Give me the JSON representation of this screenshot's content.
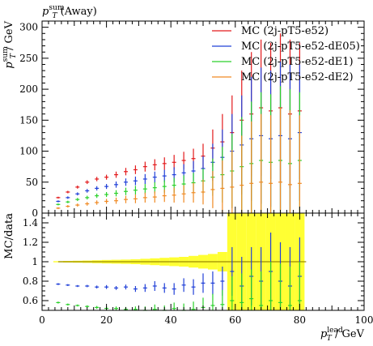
{
  "chart_data": [
    {
      "type": "scatter",
      "panel": "main",
      "title": "p_T^sum (Away)",
      "xlabel": "p_T^lead / GeV",
      "ylabel": "p_T^sum / GeV",
      "xlim": [
        0,
        100
      ],
      "ylim": [
        0,
        310
      ],
      "x_ticks": [
        0,
        20,
        40,
        60,
        80,
        100
      ],
      "y_ticks": [
        0,
        50,
        100,
        150,
        200,
        250,
        300
      ],
      "legend_position": "top-right",
      "series": [
        {
          "name": "MC (2j-pT5-e52)",
          "color": "#e31a1c",
          "x": [
            5,
            8,
            11,
            14,
            17,
            20,
            23,
            26,
            29,
            32,
            35,
            38,
            41,
            44,
            47,
            50,
            53,
            56,
            59,
            62,
            65,
            68,
            71,
            74,
            77,
            80
          ],
          "y": [
            25,
            34,
            42,
            50,
            55,
            58,
            62,
            67,
            70,
            75,
            78,
            80,
            82,
            85,
            88,
            92,
            105,
            115,
            130,
            150,
            160,
            170,
            165,
            170,
            160,
            165
          ],
          "err": [
            1.5,
            2,
            2.5,
            3,
            3.5,
            4,
            5,
            6,
            7,
            8,
            9,
            10,
            12,
            14,
            16,
            20,
            30,
            45,
            60,
            80,
            100,
            110,
            110,
            120,
            120,
            110
          ]
        },
        {
          "name": "MC (2j-pT5-e52-dE05)",
          "color": "#2140d8",
          "x": [
            5,
            8,
            11,
            14,
            17,
            20,
            23,
            26,
            29,
            32,
            35,
            38,
            41,
            44,
            47,
            50,
            53,
            56,
            59,
            62,
            65,
            68,
            71,
            74,
            77,
            80
          ],
          "y": [
            19,
            25,
            31,
            36,
            40,
            43,
            46,
            50,
            52,
            55,
            58,
            60,
            62,
            65,
            68,
            72,
            82,
            90,
            100,
            110,
            120,
            125,
            120,
            125,
            120,
            130
          ],
          "err": [
            1.5,
            2,
            2.5,
            3,
            3.5,
            4,
            5,
            6,
            7,
            8,
            9,
            10,
            12,
            14,
            16,
            20,
            30,
            45,
            60,
            80,
            100,
            110,
            110,
            120,
            120,
            110
          ]
        },
        {
          "name": "MC (2j-pT5-e52-dE1)",
          "color": "#2bd12b",
          "x": [
            5,
            8,
            11,
            14,
            17,
            20,
            23,
            26,
            29,
            32,
            35,
            38,
            41,
            44,
            47,
            50,
            53,
            56,
            59,
            62,
            65,
            68,
            71,
            74,
            77,
            80
          ],
          "y": [
            14,
            18,
            22,
            25,
            28,
            30,
            32,
            35,
            37,
            39,
            41,
            43,
            45,
            47,
            49,
            52,
            58,
            62,
            68,
            75,
            80,
            85,
            82,
            85,
            80,
            85
          ],
          "err": [
            1.5,
            2,
            2.5,
            3,
            3.5,
            4,
            5,
            6,
            7,
            8,
            9,
            10,
            12,
            14,
            16,
            20,
            30,
            45,
            60,
            80,
            100,
            110,
            110,
            120,
            120,
            110
          ]
        },
        {
          "name": "MC (2j-pT5-e52-dE2)",
          "color": "#f08a24",
          "x": [
            5,
            8,
            11,
            14,
            17,
            20,
            23,
            26,
            29,
            32,
            35,
            38,
            41,
            44,
            47,
            50,
            53,
            56,
            59,
            62,
            65,
            68,
            71,
            74,
            77,
            80
          ],
          "y": [
            8,
            11,
            13,
            15,
            17,
            19,
            20,
            22,
            23,
            25,
            26,
            28,
            29,
            31,
            33,
            34,
            38,
            40,
            42,
            45,
            48,
            50,
            48,
            50,
            46,
            48
          ],
          "err": [
            1.5,
            2,
            2.5,
            3,
            3.5,
            4,
            5,
            6,
            7,
            8,
            9,
            10,
            12,
            14,
            16,
            20,
            30,
            45,
            60,
            80,
            100,
            110,
            110,
            120,
            120,
            110
          ]
        }
      ]
    },
    {
      "type": "scatter",
      "panel": "ratio",
      "ylabel": "MC/data",
      "xlabel": "p_T^lead / GeV",
      "xlim": [
        0,
        100
      ],
      "ylim": [
        0.5,
        1.5
      ],
      "x_ticks": [
        0,
        20,
        40,
        60,
        80,
        100
      ],
      "y_ticks": [
        0.6,
        0.8,
        1.0,
        1.2,
        1.4
      ],
      "y_tick_labels": [
        "0.6",
        "0.8",
        "1",
        "1.2",
        "1.4"
      ],
      "reference_line": 1.0,
      "band_color": "#ffff33",
      "band": {
        "x": [
          5,
          8,
          11,
          14,
          17,
          20,
          23,
          26,
          29,
          32,
          35,
          38,
          41,
          44,
          47,
          50,
          53,
          56,
          59,
          62,
          65,
          68,
          71,
          74,
          77,
          80
        ],
        "half_width": [
          0.006,
          0.008,
          0.01,
          0.012,
          0.015,
          0.018,
          0.02,
          0.022,
          0.025,
          0.03,
          0.035,
          0.04,
          0.045,
          0.05,
          0.06,
          0.07,
          0.08,
          0.1,
          0.5,
          0.5,
          0.5,
          0.5,
          0.5,
          0.5,
          0.5,
          0.5
        ]
      },
      "series": [
        {
          "name": "MC (2j-pT5-e52-dE05)",
          "color": "#2140d8",
          "x": [
            5,
            8,
            11,
            14,
            17,
            20,
            23,
            26,
            29,
            32,
            35,
            38,
            41,
            44,
            47,
            50,
            53,
            56,
            59,
            62,
            65,
            68,
            71,
            74,
            77,
            80
          ],
          "y": [
            0.77,
            0.76,
            0.75,
            0.75,
            0.74,
            0.74,
            0.73,
            0.74,
            0.72,
            0.73,
            0.75,
            0.73,
            0.72,
            0.76,
            0.74,
            0.78,
            0.78,
            0.8,
            0.9,
            0.75,
            0.85,
            0.8,
            0.9,
            0.8,
            0.75,
            0.85
          ],
          "err": [
            0.01,
            0.01,
            0.01,
            0.012,
            0.015,
            0.02,
            0.02,
            0.025,
            0.03,
            0.04,
            0.05,
            0.05,
            0.06,
            0.07,
            0.08,
            0.1,
            0.12,
            0.15,
            0.25,
            0.3,
            0.3,
            0.35,
            0.4,
            0.4,
            0.4,
            0.4
          ]
        },
        {
          "name": "MC (2j-pT5-e52-dE1)",
          "color": "#2bd12b",
          "x": [
            5,
            8,
            11,
            14,
            17,
            20,
            23,
            26,
            29,
            32,
            35,
            38,
            41,
            44,
            47,
            50,
            53,
            56,
            59,
            62,
            65,
            68,
            71,
            74,
            77,
            80
          ],
          "y": [
            0.58,
            0.56,
            0.55,
            0.54,
            0.53,
            0.52,
            0.52,
            0.51,
            0.51,
            0.5,
            0.51,
            0.5,
            0.52,
            0.5,
            0.51,
            0.53,
            0.55,
            0.56,
            0.6,
            0.58,
            0.62,
            0.55,
            0.6,
            0.58,
            0.55,
            0.6
          ],
          "err": [
            0.01,
            0.01,
            0.01,
            0.012,
            0.015,
            0.02,
            0.02,
            0.025,
            0.03,
            0.04,
            0.05,
            0.05,
            0.06,
            0.07,
            0.08,
            0.1,
            0.12,
            0.15,
            0.25,
            0.3,
            0.3,
            0.35,
            0.4,
            0.4,
            0.4,
            0.4
          ]
        }
      ]
    }
  ]
}
